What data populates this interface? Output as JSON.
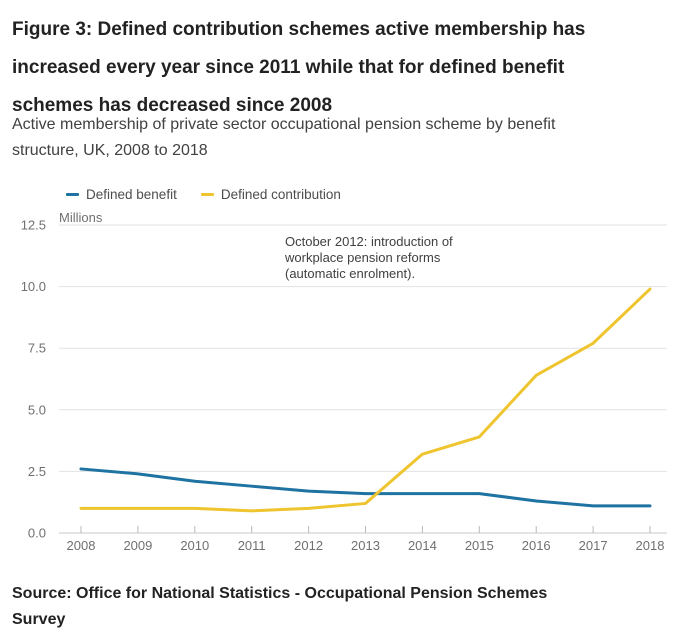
{
  "page": {
    "title_lines": [
      "Figure 3: Defined contribution schemes active membership has",
      "increased every year since 2011 while that for defined benefit",
      "schemes has decreased since 2008"
    ],
    "subtitle_lines": [
      "Active membership of private sector occupational pension scheme by benefit",
      "structure, UK, 2008 to 2018"
    ],
    "source_lines": [
      "Source: Office for National Statistics - Occupational Pension Schemes",
      "Survey"
    ]
  },
  "chart_data": {
    "type": "line",
    "title": "Active membership of private sector occupational pension scheme by benefit structure, UK, 2008 to 2018",
    "unit_label": "Millions",
    "x": [
      "2008",
      "2009",
      "2010",
      "2011",
      "2012",
      "2013",
      "2014",
      "2015",
      "2016",
      "2017",
      "2018"
    ],
    "series": [
      {
        "name": "Defined benefit",
        "color": "#1e73a2",
        "values": [
          2.6,
          2.4,
          2.1,
          1.9,
          1.7,
          1.6,
          1.6,
          1.6,
          1.3,
          1.1,
          1.1
        ]
      },
      {
        "name": "Defined contribution",
        "color": "#efc52f",
        "values": [
          1.0,
          1.0,
          1.0,
          0.9,
          1.0,
          1.2,
          3.2,
          3.9,
          6.4,
          7.7,
          9.9
        ]
      }
    ],
    "ylim": [
      0,
      12.5
    ],
    "y_ticks": [
      0,
      2.5,
      5,
      7.5,
      10,
      12.5
    ],
    "y_tick_labels": [
      "0.0",
      "2.5",
      "5.0",
      "7.5",
      "10.0",
      "12.5"
    ],
    "grid": "horizontal",
    "legend_position": "top-left",
    "annotation": {
      "lines": [
        "October 2012: introduction of",
        "workplace pension reforms",
        "(automatic enrolment)."
      ]
    },
    "colors": {
      "gridline": "#e2e2e2",
      "axis_line": "#c8c8c8",
      "tick": "#b9b9b9",
      "axis_text": "#707070"
    }
  }
}
